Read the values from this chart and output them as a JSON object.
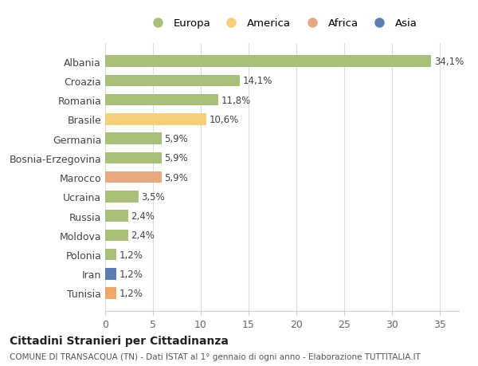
{
  "categories": [
    "Tunisia",
    "Iran",
    "Polonia",
    "Moldova",
    "Russia",
    "Ucraina",
    "Marocco",
    "Bosnia-Erzegovina",
    "Germania",
    "Brasile",
    "Romania",
    "Croazia",
    "Albania"
  ],
  "values": [
    1.2,
    1.2,
    1.2,
    2.4,
    2.4,
    3.5,
    5.9,
    5.9,
    5.9,
    10.6,
    11.8,
    14.1,
    34.1
  ],
  "labels": [
    "1,2%",
    "1,2%",
    "1,2%",
    "2,4%",
    "2,4%",
    "3,5%",
    "5,9%",
    "5,9%",
    "5,9%",
    "10,6%",
    "11,8%",
    "14,1%",
    "34,1%"
  ],
  "colors": [
    "#f0a868",
    "#5b7db1",
    "#a8c07a",
    "#a8c07a",
    "#a8c07a",
    "#a8c07a",
    "#e8a882",
    "#a8c07a",
    "#a8c07a",
    "#f5d07a",
    "#a8c07a",
    "#a8c07a",
    "#a8c07a"
  ],
  "legend": [
    {
      "label": "Europa",
      "color": "#a8c07a"
    },
    {
      "label": "America",
      "color": "#f5d07a"
    },
    {
      "label": "Africa",
      "color": "#e8a882"
    },
    {
      "label": "Asia",
      "color": "#5b7db1"
    }
  ],
  "title": "Cittadini Stranieri per Cittadinanza",
  "subtitle": "COMUNE DI TRANSACQUA (TN) - Dati ISTAT al 1° gennaio di ogni anno - Elaborazione TUTTITALIA.IT",
  "xlim": [
    0,
    37
  ],
  "xticks": [
    0,
    5,
    10,
    15,
    20,
    25,
    30,
    35
  ],
  "bg_color": "#ffffff",
  "grid_color": "#dddddd"
}
